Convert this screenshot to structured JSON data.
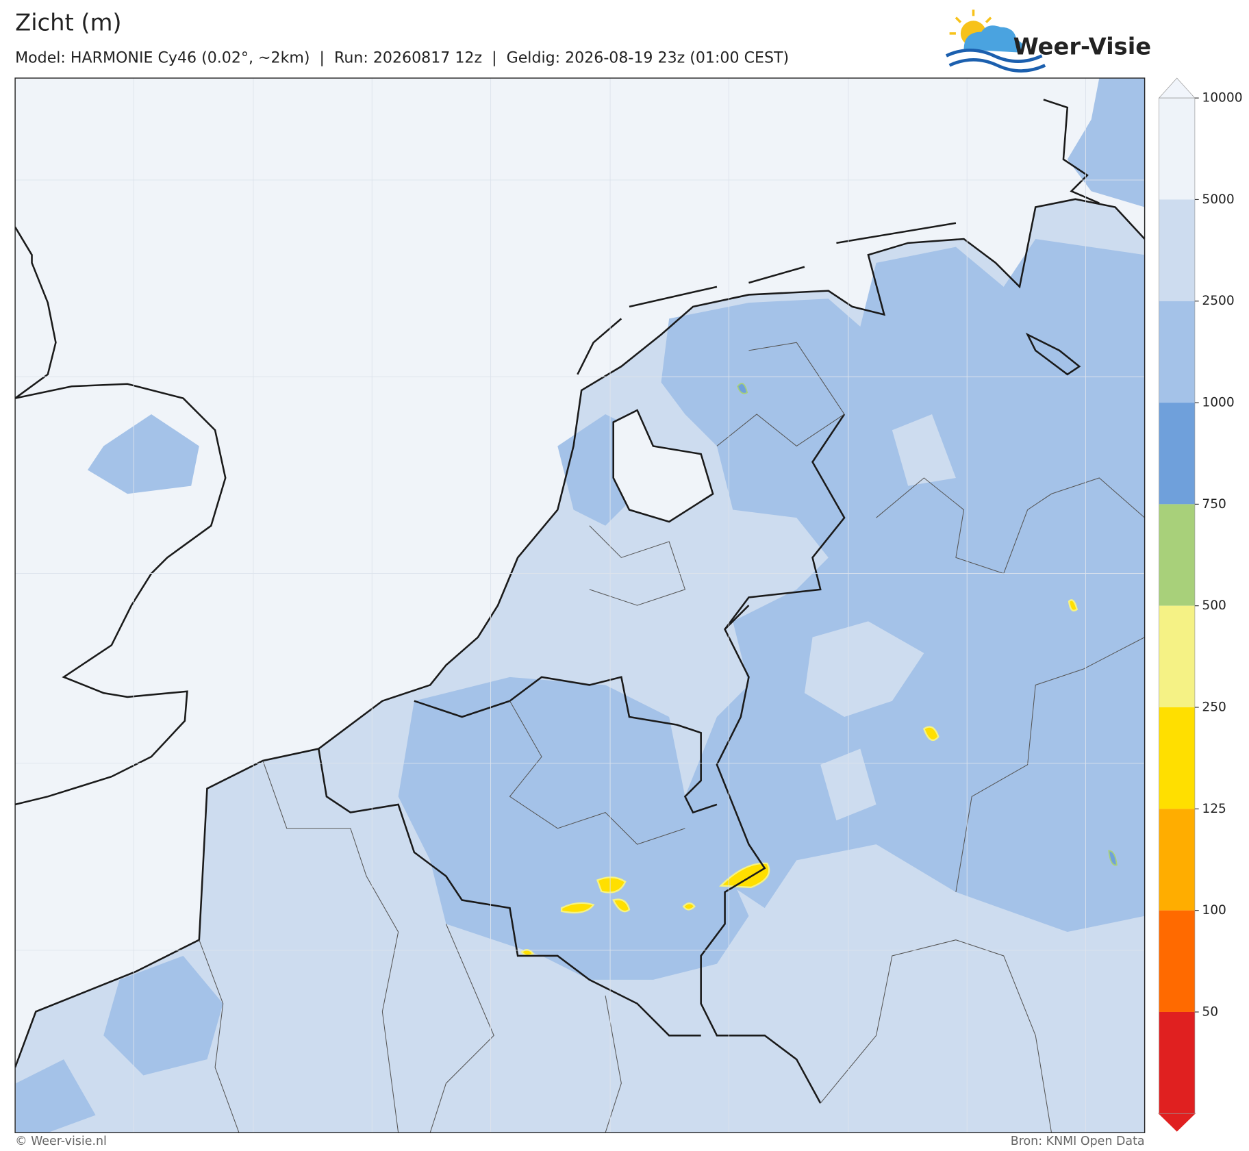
{
  "header": {
    "title": "Zicht (m)",
    "subtitle": "Model: HARMONIE Cy46 (0.02°, ~2km)  |  Run: 20260817 12z  |  Geldig: 2026-08-19 23z (01:00 CEST)"
  },
  "logo": {
    "text": "Weer-Visie"
  },
  "colorbar": {
    "levels": [
      10000,
      5000,
      2500,
      1000,
      750,
      500,
      250,
      125,
      100,
      50
    ],
    "colors": [
      "#f1f5fb",
      "#eef3f9",
      "#cddcef",
      "#a4c2e8",
      "#6fa0db",
      "#a8d07a",
      "#f5f285",
      "#ffdf00",
      "#ffad00",
      "#ff6a00",
      "#e02020"
    ]
  },
  "footer": {
    "left": "© Weer-visie.nl",
    "right": "Bron: KNMI Open Data"
  }
}
